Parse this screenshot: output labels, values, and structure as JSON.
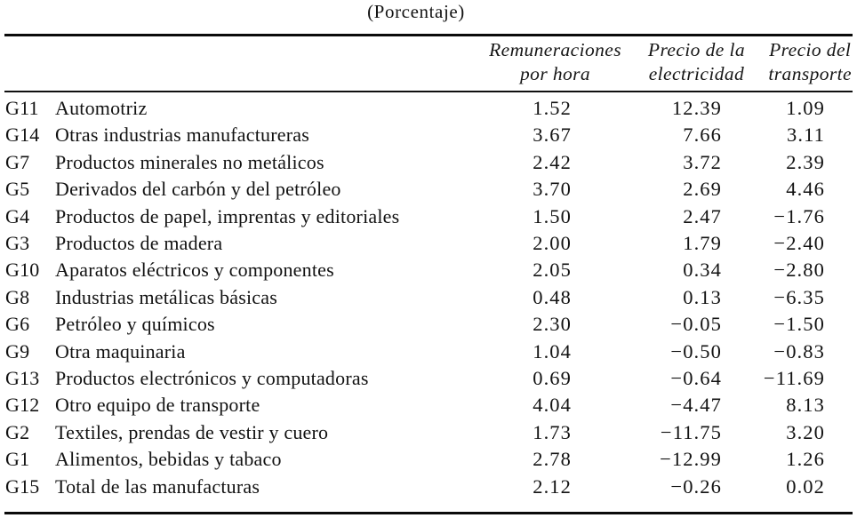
{
  "title": "(Porcentaje)",
  "table": {
    "headers": [
      {
        "line1": "Remuneraciones",
        "line2": "por hora"
      },
      {
        "line1": "Precio de la",
        "line2": "electricidad"
      },
      {
        "line1": "Precio del",
        "line2": "transporte"
      }
    ],
    "rows": [
      {
        "code": "G11",
        "name": "Automotriz",
        "values": [
          "1.52",
          "12.39",
          "1.09"
        ]
      },
      {
        "code": "G14",
        "name": "Otras industrias manufactureras",
        "values": [
          "3.67",
          "7.66",
          "3.11"
        ]
      },
      {
        "code": "G7",
        "name": "Productos minerales no metálicos",
        "values": [
          "2.42",
          "3.72",
          "2.39"
        ]
      },
      {
        "code": "G5",
        "name": "Derivados del carbón y del petróleo",
        "values": [
          "3.70",
          "2.69",
          "4.46"
        ]
      },
      {
        "code": "G4",
        "name": "Productos de papel, imprentas y editoriales",
        "values": [
          "1.50",
          "2.47",
          "−1.76"
        ]
      },
      {
        "code": "G3",
        "name": "Productos de madera",
        "values": [
          "2.00",
          "1.79",
          "−2.40"
        ]
      },
      {
        "code": "G10",
        "name": "Aparatos eléctricos y componentes",
        "values": [
          "2.05",
          "0.34",
          "−2.80"
        ]
      },
      {
        "code": "G8",
        "name": "Industrias metálicas básicas",
        "values": [
          "0.48",
          "0.13",
          "−6.35"
        ]
      },
      {
        "code": "G6",
        "name": "Petróleo y químicos",
        "values": [
          "2.30",
          "−0.05",
          "−1.50"
        ]
      },
      {
        "code": "G9",
        "name": "Otra maquinaria",
        "values": [
          "1.04",
          "−0.50",
          "−0.83"
        ]
      },
      {
        "code": "G13",
        "name": "Productos electrónicos y computadoras",
        "values": [
          "0.69",
          "−0.64",
          "−11.69"
        ]
      },
      {
        "code": "G12",
        "name": "Otro equipo de transporte",
        "values": [
          "4.04",
          "−4.47",
          "8.13"
        ]
      },
      {
        "code": "G2",
        "name": "Textiles, prendas de vestir y cuero",
        "values": [
          "1.73",
          "−11.75",
          "3.20"
        ]
      },
      {
        "code": "G1",
        "name": "Alimentos, bebidas y tabaco",
        "values": [
          "2.78",
          "−12.99",
          "1.26"
        ]
      },
      {
        "code": "G15",
        "name": "Total de las manufacturas",
        "values": [
          "2.12",
          "−0.26",
          "0.02"
        ]
      }
    ]
  },
  "colors": {
    "text": "#101010",
    "rule": "#0b0b0b",
    "background": "#ffffff"
  }
}
